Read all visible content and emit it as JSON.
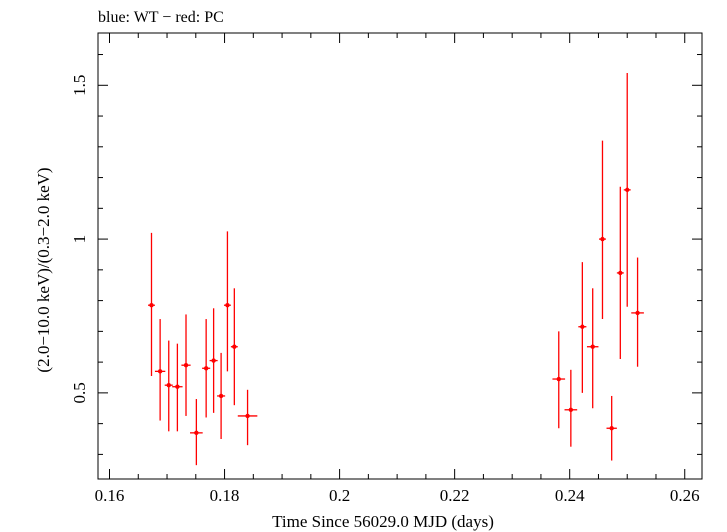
{
  "chart_data": {
    "type": "scatter",
    "title": "blue: WT − red: PC",
    "xlabel": "Time Since 56029.0 MJD (days)",
    "ylabel": "(2.0−10.0 keV)/(0.3−2.0 keV)",
    "xlim": [
      0.158,
      0.263
    ],
    "ylim": [
      0.22,
      1.67
    ],
    "x_ticks": [
      0.16,
      0.18,
      0.2,
      0.22,
      0.24,
      0.26
    ],
    "x_tick_labels": [
      "0.16",
      "0.18",
      "0.2",
      "0.22",
      "0.24",
      "0.26"
    ],
    "y_ticks": [
      0.5,
      1,
      1.5
    ],
    "y_tick_labels": [
      "0.5",
      "1",
      "1.5"
    ],
    "grid": false,
    "colors": {
      "PC": "#ff0000",
      "WT": "#0000ff",
      "axes": "#000000"
    },
    "series": [
      {
        "name": "PC",
        "color": "#ff0000",
        "points": [
          {
            "x": 0.1673,
            "xerr": 0.0006,
            "y": 0.785,
            "yerr_lo": 0.23,
            "yerr_hi": 0.235
          },
          {
            "x": 0.1688,
            "xerr": 0.0009,
            "y": 0.57,
            "yerr_lo": 0.16,
            "yerr_hi": 0.17
          },
          {
            "x": 0.1703,
            "xerr": 0.0007,
            "y": 0.525,
            "yerr_lo": 0.15,
            "yerr_hi": 0.145
          },
          {
            "x": 0.1718,
            "xerr": 0.0009,
            "y": 0.52,
            "yerr_lo": 0.145,
            "yerr_hi": 0.14
          },
          {
            "x": 0.1733,
            "xerr": 0.0008,
            "y": 0.59,
            "yerr_lo": 0.165,
            "yerr_hi": 0.165
          },
          {
            "x": 0.1751,
            "xerr": 0.0011,
            "y": 0.37,
            "yerr_lo": 0.105,
            "yerr_hi": 0.11
          },
          {
            "x": 0.1768,
            "xerr": 0.0007,
            "y": 0.58,
            "yerr_lo": 0.16,
            "yerr_hi": 0.16
          },
          {
            "x": 0.1781,
            "xerr": 0.0007,
            "y": 0.605,
            "yerr_lo": 0.17,
            "yerr_hi": 0.17
          },
          {
            "x": 0.1794,
            "xerr": 0.0007,
            "y": 0.49,
            "yerr_lo": 0.14,
            "yerr_hi": 0.14
          },
          {
            "x": 0.1805,
            "xerr": 0.0006,
            "y": 0.785,
            "yerr_lo": 0.215,
            "yerr_hi": 0.24
          },
          {
            "x": 0.1817,
            "xerr": 0.0006,
            "y": 0.65,
            "yerr_lo": 0.19,
            "yerr_hi": 0.19
          },
          {
            "x": 0.184,
            "xerr": 0.0017,
            "y": 0.425,
            "yerr_lo": 0.095,
            "yerr_hi": 0.085
          },
          {
            "x": 0.2381,
            "xerr": 0.0011,
            "y": 0.545,
            "yerr_lo": 0.16,
            "yerr_hi": 0.155
          },
          {
            "x": 0.2402,
            "xerr": 0.0011,
            "y": 0.445,
            "yerr_lo": 0.12,
            "yerr_hi": 0.13
          },
          {
            "x": 0.2422,
            "xerr": 0.0007,
            "y": 0.715,
            "yerr_lo": 0.215,
            "yerr_hi": 0.21
          },
          {
            "x": 0.244,
            "xerr": 0.001,
            "y": 0.65,
            "yerr_lo": 0.2,
            "yerr_hi": 0.19
          },
          {
            "x": 0.2457,
            "xerr": 0.0006,
            "y": 1.0,
            "yerr_lo": 0.26,
            "yerr_hi": 0.32
          },
          {
            "x": 0.2473,
            "xerr": 0.0009,
            "y": 0.385,
            "yerr_lo": 0.105,
            "yerr_hi": 0.105
          },
          {
            "x": 0.2488,
            "xerr": 0.0006,
            "y": 0.89,
            "yerr_lo": 0.28,
            "yerr_hi": 0.28
          },
          {
            "x": 0.25,
            "xerr": 0.0006,
            "y": 1.16,
            "yerr_lo": 0.38,
            "yerr_hi": 0.38
          },
          {
            "x": 0.2518,
            "xerr": 0.0011,
            "y": 0.76,
            "yerr_lo": 0.175,
            "yerr_hi": 0.18
          }
        ]
      }
    ]
  }
}
